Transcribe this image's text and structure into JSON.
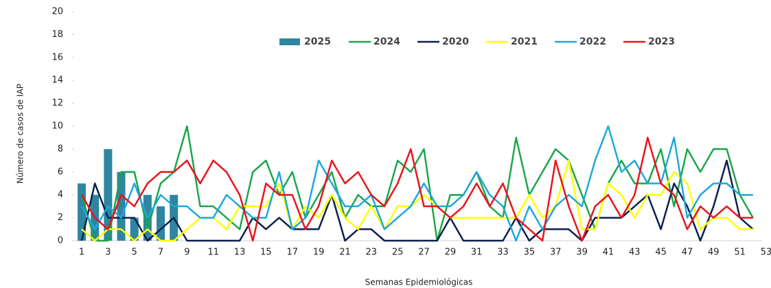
{
  "chart_data": {
    "type": "combo",
    "y_axis_label": "Número de casos de IAP",
    "x_axis_label": "Semanas Epidemiológicas",
    "categories": [
      1,
      null,
      3,
      null,
      5,
      null,
      7,
      null,
      9,
      null,
      11,
      null,
      13,
      null,
      15,
      null,
      17,
      null,
      19,
      null,
      21,
      null,
      23,
      null,
      25,
      null,
      27,
      null,
      29,
      null,
      31,
      null,
      33,
      null,
      35,
      null,
      37,
      null,
      39,
      null,
      41,
      null,
      43,
      null,
      45,
      null,
      47,
      null,
      49,
      null,
      51,
      null,
      53
    ],
    "ylim": [
      0,
      20
    ],
    "yticks": [
      0,
      2,
      4,
      6,
      8,
      10,
      12,
      14,
      16,
      18,
      20
    ],
    "grid": false,
    "legend": "top",
    "series": [
      {
        "name": "2025",
        "type": "bar",
        "color": "#2e86a0",
        "values": [
          5,
          4,
          8,
          6,
          2,
          4,
          3,
          4,
          null,
          null,
          null,
          null,
          null,
          null,
          null,
          null,
          null,
          null,
          null,
          null,
          null,
          null,
          null,
          null,
          null,
          null,
          null,
          null,
          null,
          null,
          null,
          null,
          null,
          null,
          null,
          null,
          null,
          null,
          null,
          null,
          null,
          null,
          null,
          null,
          null,
          null,
          null,
          null,
          null,
          null,
          null,
          null,
          null
        ]
      },
      {
        "name": "2024",
        "type": "line",
        "color": "#1aa64a",
        "values": [
          4,
          0,
          0,
          6,
          6,
          1,
          5,
          6,
          10,
          3,
          3,
          2,
          1,
          6,
          7,
          4,
          6,
          2,
          4,
          6,
          2,
          4,
          3,
          3,
          7,
          6,
          8,
          0,
          4,
          4,
          6,
          3,
          2,
          9,
          4,
          6,
          8,
          7,
          4,
          1,
          5,
          7,
          5,
          5,
          8,
          3,
          8,
          6,
          8,
          8,
          4,
          2,
          null
        ]
      },
      {
        "name": "2020",
        "type": "line",
        "color": "#0b1f4f",
        "values": [
          0,
          5,
          2,
          2,
          2,
          0,
          1,
          2,
          0,
          0,
          0,
          0,
          0,
          2,
          1,
          2,
          1,
          1,
          1,
          4,
          0,
          1,
          1,
          0,
          0,
          0,
          0,
          0,
          2,
          0,
          0,
          0,
          0,
          2,
          0,
          1,
          1,
          1,
          0,
          2,
          2,
          2,
          3,
          4,
          1,
          5,
          3,
          0,
          3,
          7,
          2,
          1,
          null
        ]
      },
      {
        "name": "2021",
        "type": "line",
        "color": "#ffff00",
        "values": [
          1,
          0,
          1,
          1,
          0,
          1,
          0,
          0,
          1,
          2,
          2,
          1,
          3,
          3,
          3,
          5,
          1,
          3,
          2,
          4,
          2,
          1,
          3,
          1,
          3,
          3,
          4,
          3,
          2,
          2,
          2,
          2,
          2,
          2,
          4,
          2,
          3,
          7,
          1,
          1,
          5,
          4,
          2,
          4,
          4,
          6,
          5,
          1,
          2,
          2,
          1,
          1,
          null
        ]
      },
      {
        "name": "2022",
        "type": "line",
        "color": "#1ea7dd",
        "values": [
          3,
          1,
          3,
          2,
          5,
          2,
          4,
          3,
          3,
          2,
          2,
          4,
          3,
          2,
          2,
          6,
          1,
          2,
          7,
          5,
          3,
          3,
          4,
          1,
          2,
          3,
          5,
          3,
          3,
          4,
          6,
          4,
          3,
          0,
          3,
          1,
          3,
          4,
          3,
          7,
          10,
          6,
          7,
          5,
          5,
          9,
          2,
          4,
          5,
          5,
          4,
          4,
          null
        ]
      },
      {
        "name": "2023",
        "type": "line",
        "color": "#e8141b",
        "values": [
          4,
          2,
          1,
          4,
          3,
          5,
          6,
          6,
          7,
          5,
          7,
          6,
          4,
          0,
          5,
          4,
          4,
          1,
          3,
          7,
          5,
          6,
          4,
          3,
          5,
          8,
          3,
          3,
          2,
          3,
          5,
          3,
          5,
          2,
          1,
          0,
          7,
          3,
          0,
          3,
          4,
          2,
          4,
          9,
          5,
          4,
          1,
          3,
          2,
          3,
          2,
          2,
          null
        ]
      }
    ]
  }
}
